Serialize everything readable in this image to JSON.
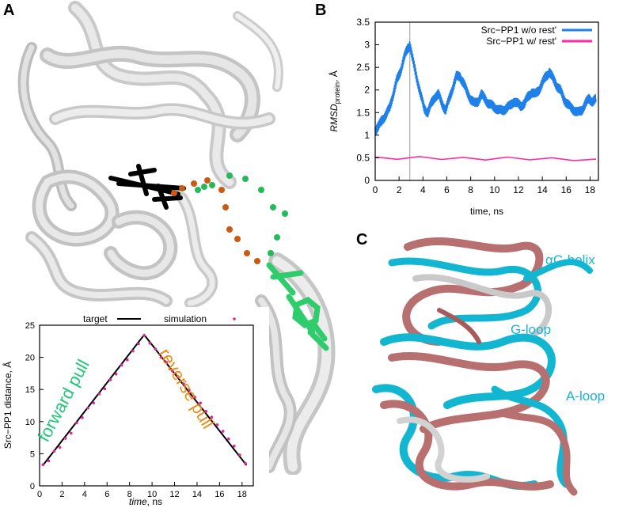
{
  "panels": {
    "a": {
      "letter": "A"
    },
    "b": {
      "letter": "B"
    },
    "c": {
      "letter": "C",
      "labels": [
        "αC-helix",
        "G-loop",
        "A-loop"
      ]
    }
  },
  "colors": {
    "series_wo": "#1e80e8",
    "series_w": "#ff2aa6",
    "simulation": "#e0249a",
    "label_blue": "#17b3d8",
    "forward": "#22c87a",
    "reverse": "#f08a14",
    "ligand_green": "#2ecc6a",
    "dot_orange": "#c85a12",
    "dot_green": "#27b85c"
  },
  "chart_data": [
    {
      "type": "line",
      "panel": "A",
      "xlabel_italic": "time",
      "xlabel_rest": ", ns",
      "ylabel": "Src−PP1 distance, Å",
      "xlim": [
        0,
        19
      ],
      "ylim": [
        0,
        25
      ],
      "xticks": [
        0,
        2,
        4,
        6,
        8,
        10,
        12,
        14,
        16,
        18
      ],
      "yticks": [
        0,
        5,
        10,
        15,
        20,
        25
      ],
      "legend": [
        "target",
        "simulation"
      ],
      "annotations": [
        "forward pull",
        "reverse pull"
      ],
      "target": {
        "x": [
          0.3,
          9.3,
          18.4
        ],
        "y": [
          3.2,
          23.5,
          3.2
        ]
      },
      "simulation": {
        "x": [
          0.3,
          0.8,
          1.3,
          1.8,
          2.3,
          2.8,
          3.3,
          3.8,
          4.3,
          4.8,
          5.3,
          5.8,
          6.3,
          6.8,
          7.3,
          7.8,
          8.3,
          8.8,
          9.3,
          9.8,
          10.3,
          10.8,
          11.3,
          11.8,
          12.3,
          12.8,
          13.3,
          13.8,
          14.3,
          14.8,
          15.3,
          15.8,
          16.3,
          16.8,
          17.3,
          17.8,
          18.3
        ],
        "y": [
          3.3,
          3.9,
          5.4,
          6.0,
          7.4,
          8.2,
          9.8,
          10.6,
          12.1,
          12.9,
          14.3,
          15.1,
          16.5,
          17.4,
          18.8,
          19.6,
          21.0,
          22.1,
          23.4,
          22.2,
          21.3,
          20.0,
          19.2,
          17.9,
          17.0,
          15.9,
          14.9,
          13.8,
          12.9,
          11.6,
          10.7,
          9.5,
          8.5,
          7.3,
          6.2,
          4.8,
          3.5
        ]
      }
    },
    {
      "type": "line",
      "panel": "B",
      "xlabel": "time, ns",
      "ylabel_italic": "RMSD",
      "ylabel_sub": "protein",
      "ylabel_rest": ", Å",
      "xlim": [
        0,
        18.7
      ],
      "ylim": [
        0,
        3.5
      ],
      "xticks": [
        0,
        2,
        4,
        6,
        8,
        10,
        12,
        14,
        16,
        18
      ],
      "yticks": [
        0,
        0.5,
        1,
        1.5,
        2,
        2.5,
        3,
        3.5
      ],
      "vline_x": 2.9,
      "series": [
        {
          "name": "Src−PP1 w/o rest'",
          "x": [
            0,
            0.3,
            0.6,
            0.9,
            1.2,
            1.5,
            1.8,
            2.1,
            2.4,
            2.7,
            2.9,
            3.2,
            3.5,
            3.8,
            4.1,
            4.4,
            4.7,
            5.0,
            5.3,
            5.6,
            5.9,
            6.2,
            6.5,
            6.8,
            7.1,
            7.4,
            7.7,
            8.0,
            8.3,
            8.6,
            8.9,
            9.2,
            9.5,
            9.8,
            10.1,
            10.4,
            10.7,
            11.0,
            11.3,
            11.6,
            11.9,
            12.2,
            12.5,
            12.8,
            13.1,
            13.4,
            13.7,
            14.0,
            14.3,
            14.6,
            14.9,
            15.2,
            15.5,
            15.8,
            16.1,
            16.4,
            16.7,
            17.0,
            17.3,
            17.6,
            17.9,
            18.2,
            18.5
          ],
          "y": [
            1.1,
            1.2,
            1.35,
            1.45,
            1.6,
            1.9,
            2.2,
            2.4,
            2.7,
            2.9,
            3.0,
            2.6,
            2.25,
            1.9,
            1.6,
            1.5,
            1.7,
            1.85,
            1.9,
            1.7,
            1.55,
            1.8,
            2.05,
            2.3,
            2.3,
            2.15,
            1.95,
            1.8,
            1.7,
            1.75,
            1.9,
            1.8,
            1.7,
            1.65,
            1.6,
            1.55,
            1.55,
            1.6,
            1.65,
            1.75,
            1.7,
            1.65,
            1.7,
            1.85,
            1.95,
            1.9,
            2.0,
            2.15,
            2.3,
            2.4,
            2.25,
            2.1,
            2.0,
            1.8,
            1.7,
            1.6,
            1.55,
            1.5,
            1.55,
            1.7,
            1.8,
            1.75,
            1.8
          ]
        },
        {
          "name": "Src−PP1 w/ rest'",
          "x": [
            0,
            18.5
          ],
          "y": [
            0.5,
            0.47
          ]
        }
      ]
    }
  ]
}
